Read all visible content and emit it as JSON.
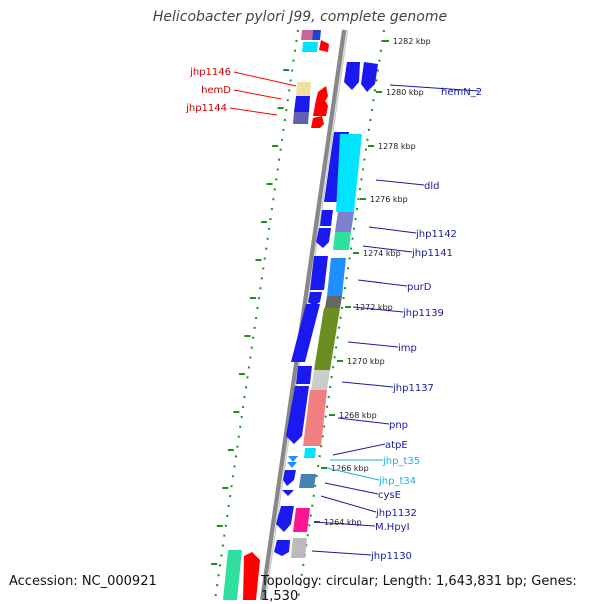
{
  "title": "Helicobacter pylori J99, complete genome",
  "footer": {
    "accession": "Accession: NC_000921",
    "topology": "Topology: circular; Length: 1,643,831 bp; Genes: 1,530"
  },
  "colors": {
    "blue": "#0000ff",
    "red": "#ff0000",
    "green_ruler": "#228b22",
    "rna": "#1e90ff",
    "label_red": "#d00000",
    "label_blue": "#1a1aa0"
  },
  "ticks": [
    "1282 kbp",
    "1280 kbp",
    "1278 kbp",
    "1276 kbp",
    "1274 kbp",
    "1272 kbp",
    "1270 kbp",
    "1268 kbp",
    "1266 kbp",
    "1264 kbp"
  ],
  "left_labels": [
    "jhp1146",
    "hemD",
    "jhp1144"
  ],
  "right_labels": [
    "hemN_2",
    "dld",
    "jhp1142",
    "jhp1141",
    "purD",
    "jhp1139",
    "imp",
    "jhp1137",
    "pnp",
    "atpE",
    "jhp_t35",
    "jhp_t34",
    "cysE",
    "jhp1132",
    "M.HpyI",
    "jhp1130"
  ]
}
